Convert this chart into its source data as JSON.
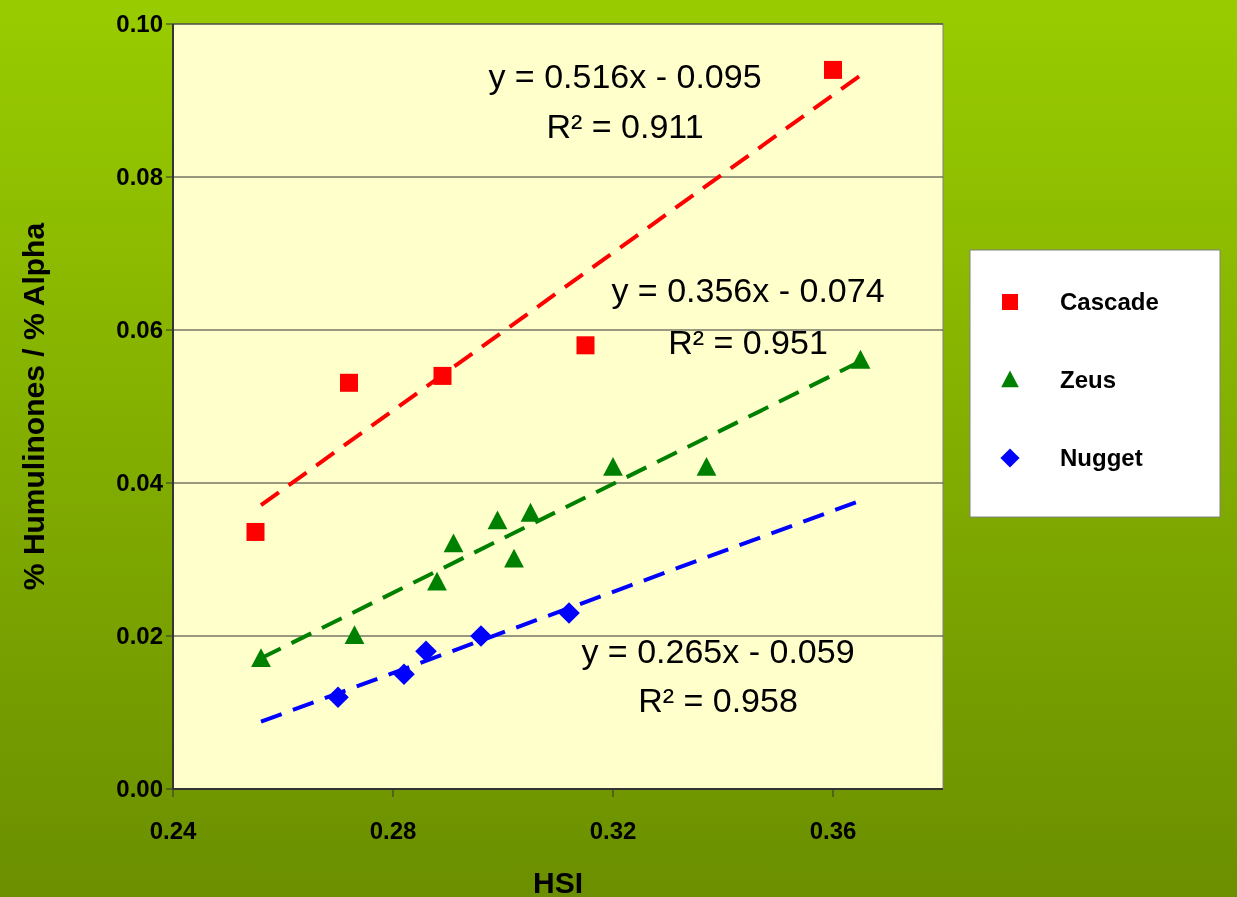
{
  "chart_data": {
    "type": "scatter",
    "xlabel": "HSI",
    "ylabel": "% Humulinones / % Alpha",
    "xlim": [
      0.24,
      0.38
    ],
    "xticks": [
      0.24,
      0.28,
      0.32,
      0.36
    ],
    "ylim": [
      0,
      0.1
    ],
    "yticks": [
      {
        "value": 0,
        "label": "0.00"
      },
      0.02,
      0.04,
      0.06,
      0.08,
      {
        "value": 0.1,
        "label": "0.10"
      }
    ],
    "grid": "y",
    "legend": "right",
    "series": [
      {
        "name": "Cascade",
        "color": "#ff0000",
        "marker": "square",
        "x": [
          0.255,
          0.272,
          0.289,
          0.315,
          0.36
        ],
        "values": [
          0.0336,
          0.0531,
          0.054,
          0.058,
          0.094
        ]
      },
      {
        "name": "Zeus",
        "color": "#008000",
        "marker": "triangle",
        "x": [
          0.256,
          0.273,
          0.288,
          0.291,
          0.299,
          0.302,
          0.305,
          0.32,
          0.337,
          0.365
        ],
        "values": [
          0.017,
          0.02,
          0.027,
          0.032,
          0.035,
          0.03,
          0.036,
          0.042,
          0.042,
          0.056
        ]
      },
      {
        "name": "Nugget",
        "color": "#0000ff",
        "marker": "diamond",
        "x": [
          0.27,
          0.282,
          0.286,
          0.296,
          0.312
        ],
        "values": [
          0.012,
          0.015,
          0.018,
          0.02,
          0.023
        ]
      },
      {
        "type": "line",
        "color": "#ff0000",
        "line_style": "dashed",
        "marker": "none",
        "x": [
          0.256,
          0.365
        ],
        "values": [
          0.0371,
          0.0933
        ]
      },
      {
        "type": "line",
        "color": "#008000",
        "line_style": "dashed",
        "marker": "none",
        "x": [
          0.256,
          0.365
        ],
        "values": [
          0.0171,
          0.0559
        ]
      },
      {
        "type": "line",
        "color": "#0000ff",
        "line_style": "dashed",
        "marker": "none",
        "x": [
          0.256,
          0.365
        ],
        "values": [
          0.0088,
          0.0377
        ]
      }
    ],
    "annotations": [
      "y = 0.516x - 0.095",
      "R² = 0.911",
      "y = 0.356x - 0.074",
      "R² = 0.951",
      "y = 0.265x - 0.059",
      "R² = 0.958"
    ]
  }
}
